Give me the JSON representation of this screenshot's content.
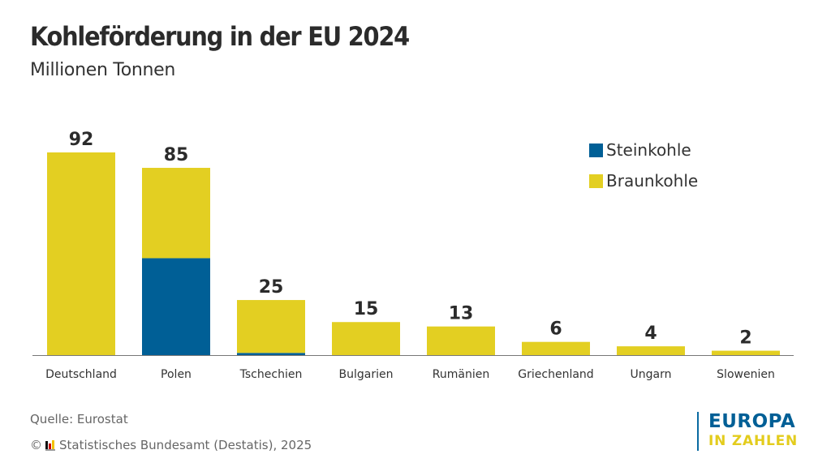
{
  "header": {
    "title": "Kohleförderung in der EU 2024",
    "subtitle": "Millionen Tonnen"
  },
  "chart_data": {
    "type": "bar",
    "stacked": true,
    "title": "Kohleförderung in der EU 2024",
    "subtitle": "Millionen Tonnen",
    "xlabel": "",
    "ylabel": "Millionen Tonnen",
    "ylim": [
      0,
      100
    ],
    "grid": false,
    "legend_position": "top-right",
    "categories": [
      "Deutschland",
      "Polen",
      "Tschechien",
      "Bulgarien",
      "Rumänien",
      "Griechenland",
      "Ungarn",
      "Slowenien"
    ],
    "totals": [
      92,
      85,
      25,
      15,
      13,
      6,
      4,
      2
    ],
    "series": [
      {
        "name": "Steinkohle",
        "color": "#005f96",
        "values": [
          0,
          44,
          1,
          0,
          0,
          0,
          0,
          0
        ]
      },
      {
        "name": "Braunkohle",
        "color": "#e3cf22",
        "values": [
          92,
          41,
          24,
          15,
          13,
          6,
          4,
          2
        ]
      }
    ]
  },
  "legend": {
    "items": [
      {
        "label": "Steinkohle",
        "color": "#005f96"
      },
      {
        "label": "Braunkohle",
        "color": "#e3cf22"
      }
    ]
  },
  "footer": {
    "source": "Quelle: Eurostat",
    "copyright_symbol": "©",
    "copyright": "Statistisches Bundesamt (Destatis), 2025",
    "brand_top": "EUROPA",
    "brand_bottom": "IN ZAHLEN"
  }
}
